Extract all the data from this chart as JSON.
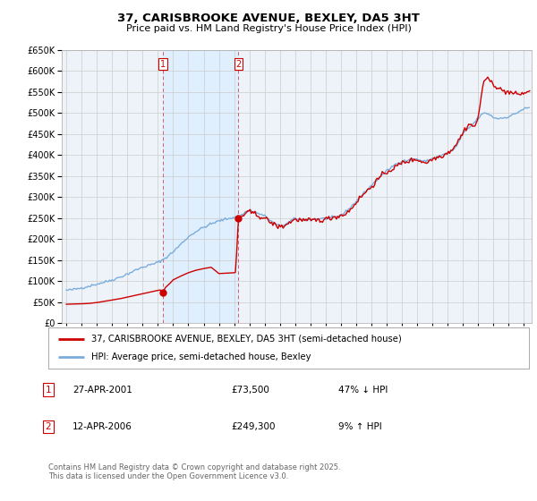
{
  "title": "37, CARISBROOKE AVENUE, BEXLEY, DA5 3HT",
  "subtitle": "Price paid vs. HM Land Registry's House Price Index (HPI)",
  "sale1_year": 2001.32,
  "sale1_price": 73500,
  "sale2_year": 2006.28,
  "sale2_price": 249300,
  "legend_red": "37, CARISBROOKE AVENUE, BEXLEY, DA5 3HT (semi-detached house)",
  "legend_blue": "HPI: Average price, semi-detached house, Bexley",
  "footer": "Contains HM Land Registry data © Crown copyright and database right 2025.\nThis data is licensed under the Open Government Licence v3.0.",
  "red_color": "#cc0000",
  "blue_color": "#7aaddc",
  "shade_color": "#ddeeff",
  "grid_color": "#cccccc",
  "bg_color": "#ffffff",
  "plot_bg_color": "#eef3fa",
  "ylim_min": 0,
  "ylim_max": 650000,
  "xlim_min": 1994.7,
  "xlim_max": 2025.5,
  "table_row1": [
    "1",
    "27-APR-2001",
    "£73,500",
    "47% ↓ HPI"
  ],
  "table_row2": [
    "2",
    "12-APR-2006",
    "£249,300",
    "9% ↑ HPI"
  ]
}
